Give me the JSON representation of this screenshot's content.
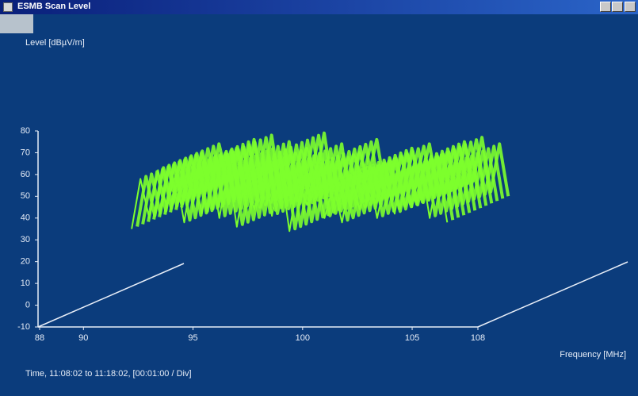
{
  "window": {
    "title": "ESMB Scan Level"
  },
  "chart_data": {
    "type": "waterfall",
    "ylabel": "Level [dBµV/m]",
    "xlabel": "Frequency [MHz]",
    "zlabel": "Time, 11:08:02 to 11:18:02, [00:01:00 / Div]",
    "color": "#7dff2c",
    "ylim": [
      -10,
      80
    ],
    "yticks": [
      -10,
      0,
      10,
      20,
      30,
      40,
      50,
      60,
      70,
      80
    ],
    "xlim": [
      88,
      108
    ],
    "xticks": [
      88,
      90,
      95,
      100,
      105,
      108
    ],
    "x": [
      92.2,
      92.6,
      93.0,
      93.4,
      93.8,
      94.2,
      94.6,
      95.0,
      95.4,
      95.8,
      96.2,
      96.6,
      97.0,
      97.4,
      97.8,
      98.2,
      98.6,
      99.0,
      99.4,
      99.8,
      100.2,
      100.6,
      101.0,
      101.4,
      101.8,
      102.2,
      102.6,
      103.0,
      103.4,
      103.8,
      104.2,
      104.6,
      105.0,
      105.4,
      105.8,
      106.2,
      106.6
    ],
    "values": [
      35,
      58,
      40,
      62,
      45,
      60,
      38,
      64,
      42,
      66,
      40,
      63,
      36,
      60,
      44,
      67,
      41,
      62,
      34,
      58,
      46,
      64,
      40,
      55,
      38,
      60,
      44,
      62,
      40,
      58,
      42,
      63,
      45,
      65,
      40,
      62,
      38
    ]
  }
}
